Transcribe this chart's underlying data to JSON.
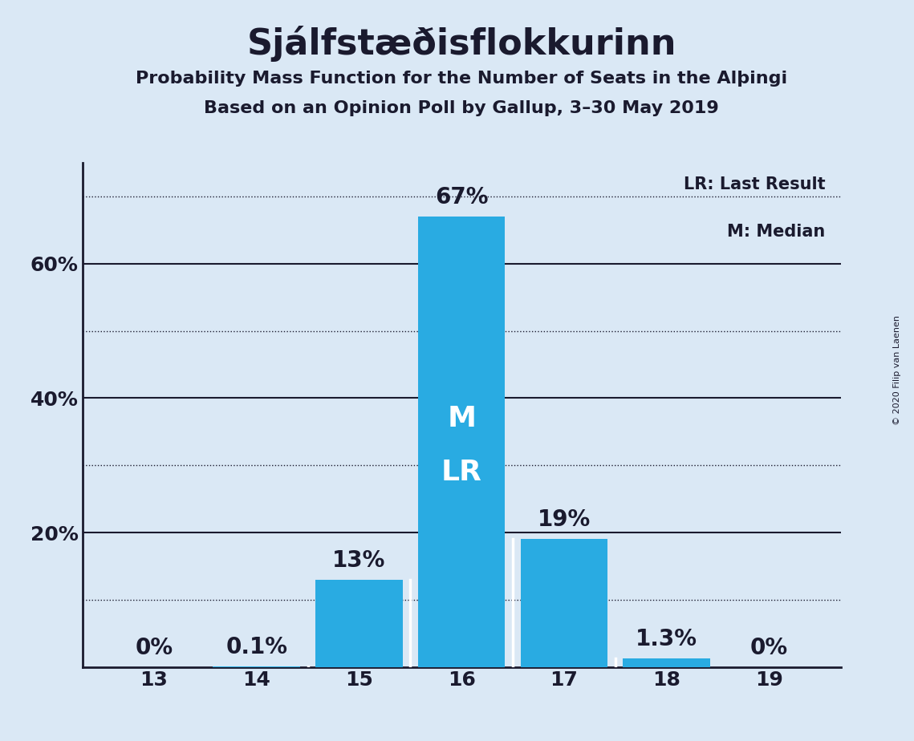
{
  "title": "Sjálfstæðisflokkurinn",
  "subtitle1": "Probability Mass Function for the Number of Seats in the Alþingi",
  "subtitle2": "Based on an Opinion Poll by Gallup, 3–30 May 2019",
  "copyright": "© 2020 Filip van Laenen",
  "categories": [
    13,
    14,
    15,
    16,
    17,
    18,
    19
  ],
  "values": [
    0.0,
    0.1,
    13.0,
    67.0,
    19.0,
    1.3,
    0.0
  ],
  "labels": [
    "0%",
    "0.1%",
    "13%",
    "67%",
    "19%",
    "1.3%",
    "0%"
  ],
  "bar_color": "#29ABE2",
  "background_color": "#DAE8F5",
  "text_color": "#1a1a2e",
  "median_label": "M",
  "last_result_label": "LR",
  "legend_lr": "LR: Last Result",
  "legend_m": "M: Median",
  "ylim": [
    0,
    75
  ],
  "solid_yticks": [
    20,
    40,
    60
  ],
  "dotted_yticks": [
    10,
    30,
    50,
    70
  ],
  "ytick_positions": [
    20,
    40,
    60
  ],
  "ytick_labels": [
    "20%",
    "40%",
    "60%"
  ],
  "title_fontsize": 32,
  "subtitle_fontsize": 16,
  "tick_fontsize": 18,
  "annotation_fontsize": 20,
  "inner_label_fontsize": 26,
  "legend_fontsize": 15,
  "copyright_fontsize": 8
}
